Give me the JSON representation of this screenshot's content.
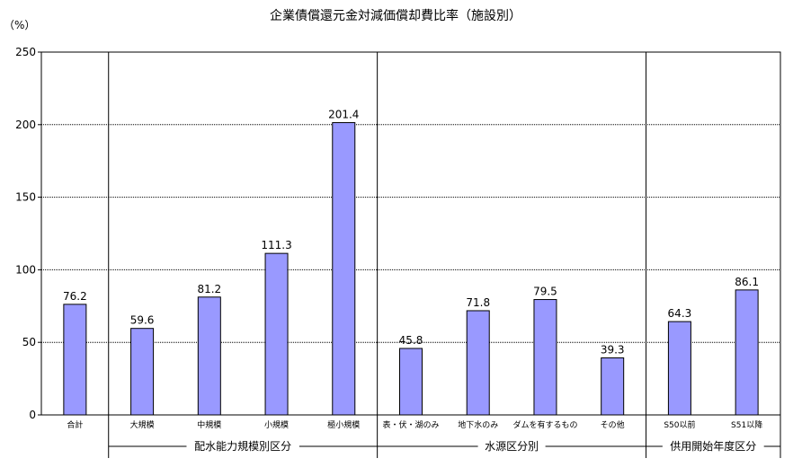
{
  "chart_data": {
    "type": "bar",
    "title": "企業債償還元金対減価償却費比率（施設別）",
    "ylabel": "（%）",
    "ylim": [
      0,
      250
    ],
    "yticks": [
      0,
      50,
      100,
      150,
      200,
      250
    ],
    "grid": true,
    "categories": [
      "合計",
      "大規模",
      "中規模",
      "小規模",
      "極小規模",
      "表・伏・湖のみ",
      "地下水のみ",
      "ダムを有するもの",
      "その他",
      "S50以前",
      "S51以降"
    ],
    "values": [
      76.2,
      59.6,
      81.2,
      111.3,
      201.4,
      45.8,
      71.8,
      79.5,
      39.3,
      64.3,
      86.1
    ],
    "value_labels": [
      "76.2",
      "59.6",
      "81.2",
      "111.3",
      "201.4",
      "45.8",
      "71.8",
      "79.5",
      "39.3",
      "64.3",
      "86.1"
    ],
    "groups": [
      {
        "label": "配水能力規模別区分",
        "start": 1,
        "end": 4
      },
      {
        "label": "水源区分別",
        "start": 5,
        "end": 8
      },
      {
        "label": "供用開始年度区分",
        "start": 9,
        "end": 10
      }
    ],
    "bar_color": "#9999ff"
  }
}
